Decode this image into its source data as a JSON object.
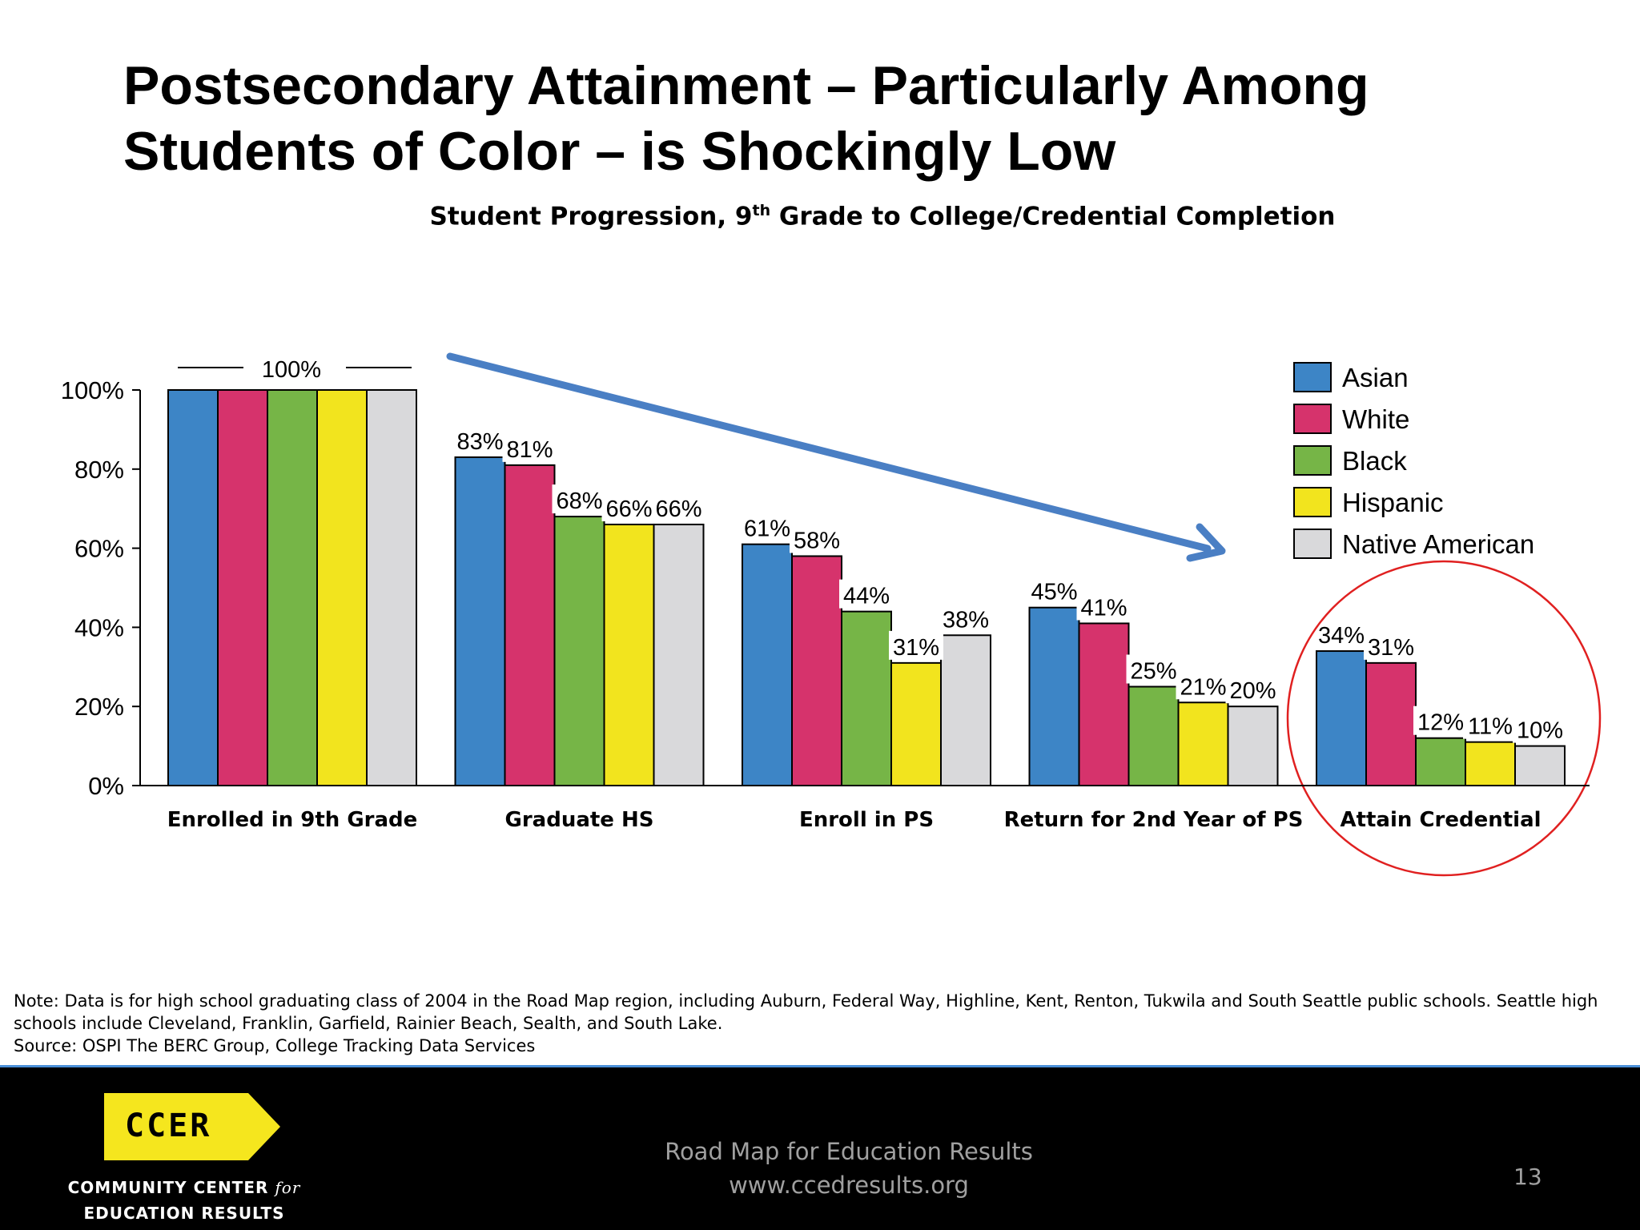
{
  "slide": {
    "title_line1": "Postsecondary Attainment – Particularly Among",
    "title_line2": "Students of Color – is Shockingly Low",
    "subtitle_main": "Student Progression, 9",
    "subtitle_sup": "th",
    "subtitle_rest": " Grade to College/Credential Completion",
    "note_line1": "Note: Data is for high school graduating class of 2004 in the Road Map region, including Auburn, Federal Way, Highline, Kent, Renton, Tukwila and South Seattle public schools.  Seattle high",
    "note_line2": "schools include Cleveland, Franklin, Garfield, Rainier Beach, Sealth, and South Lake.",
    "note_line3": "Source: OSPI The BERC Group, College Tracking Data Services"
  },
  "footer": {
    "logo_text": "CCER",
    "org_line1": "COMMUNITY CENTER",
    "org_line1_italic": "for",
    "org_line2": "EDUCATION RESULTS",
    "line1": "Road Map for Education Results",
    "line2": "www.ccedresults.org",
    "page_number": "13",
    "logo_color": "#f5e61e"
  },
  "chart_data": {
    "type": "bar",
    "categories": [
      "Enrolled in 9th Grade",
      "Graduate HS",
      "Enroll in PS",
      "Return for 2nd Year of PS",
      "Attain Credential"
    ],
    "series": [
      {
        "name": "Asian",
        "color": "#3d85c6",
        "values": [
          100,
          83,
          61,
          45,
          34
        ]
      },
      {
        "name": "White",
        "color": "#d6336c",
        "values": [
          100,
          81,
          58,
          41,
          31
        ]
      },
      {
        "name": "Black",
        "color": "#76b547",
        "values": [
          100,
          68,
          44,
          25,
          12
        ]
      },
      {
        "name": "Hispanic",
        "color": "#f2e41e",
        "values": [
          100,
          66,
          31,
          21,
          11
        ]
      },
      {
        "name": "Native American",
        "color": "#d9d9db",
        "values": [
          100,
          66,
          38,
          20,
          10
        ]
      }
    ],
    "data_labels": [
      [
        "",
        "",
        "",
        "",
        ""
      ],
      [
        "83%",
        "81%",
        "68%",
        "66%",
        "66%"
      ],
      [
        "61%",
        "58%",
        "44%",
        "31%",
        "38%"
      ],
      [
        "45%",
        "41%",
        "25%",
        "21%",
        "20%"
      ],
      [
        "34%",
        "31%",
        "12%",
        "11%",
        "10%"
      ]
    ],
    "group_label": "100%",
    "y_ticks": [
      "0%",
      "20%",
      "40%",
      "60%",
      "80%",
      "100%"
    ],
    "ylim": [
      0,
      100
    ],
    "legend_position": "top-right",
    "grid": false,
    "annotations": {
      "arrow": "downward trend arrow",
      "circle": "highlights Attain Credential",
      "arrow_color": "#4a7fc4",
      "circle_color": "#e02020"
    }
  }
}
